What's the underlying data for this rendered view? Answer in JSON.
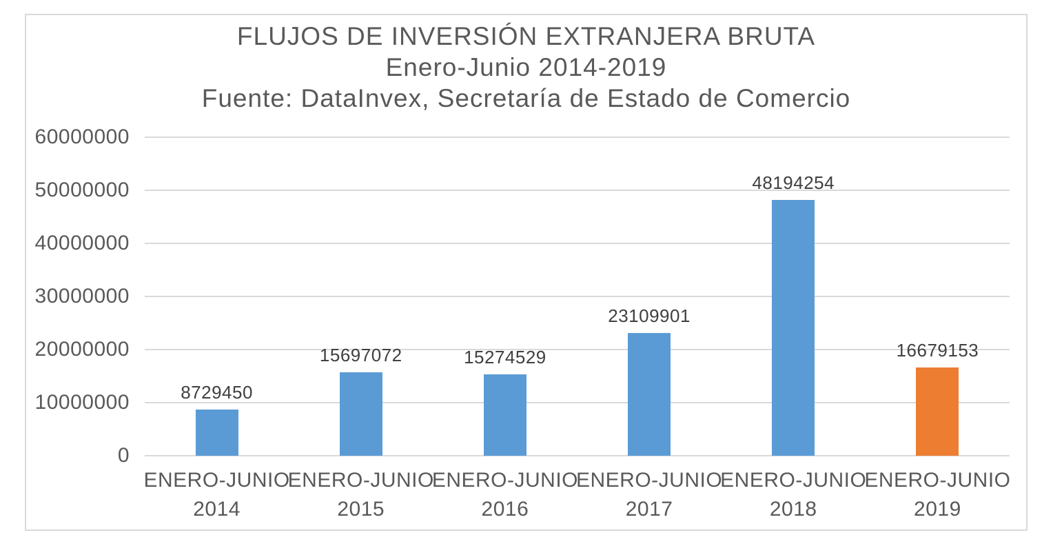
{
  "page": {
    "background": "#FFFFFF",
    "frame_border_color": "#D9D9D9"
  },
  "chart_data": {
    "type": "bar",
    "title": "FLUJOS DE INVERSIÓN EXTRANJERA BRUTA",
    "subtitle": "Enero-Junio 2014-2019",
    "source_line": "Fuente: DataInvex, Secretaría de Estado de Comercio",
    "categories": [
      "ENERO-JUNIO 2014",
      "ENERO-JUNIO 2015",
      "ENERO-JUNIO 2016",
      "ENERO-JUNIO 2017",
      "ENERO-JUNIO 2018",
      "ENERO-JUNIO 2019"
    ],
    "values": [
      8729450,
      15697072,
      15274529,
      23109901,
      48194254,
      16679153
    ],
    "data_labels": [
      "8729450",
      "15697072",
      "15274529",
      "23109901",
      "48194254",
      "16679153"
    ],
    "bar_colors": [
      "#5B9BD5",
      "#5B9BD5",
      "#5B9BD5",
      "#5B9BD5",
      "#5B9BD5",
      "#ED7D31"
    ],
    "xlabel": "",
    "ylabel": "",
    "ylim": [
      0,
      60000000
    ],
    "yticks": [
      0,
      10000000,
      20000000,
      30000000,
      40000000,
      50000000,
      60000000
    ],
    "ytick_labels": [
      "0",
      "10000000",
      "20000000",
      "30000000",
      "40000000",
      "50000000",
      "60000000"
    ],
    "grid": true,
    "legend": "none",
    "gridline_color": "#D9D9D9",
    "axis_label_color": "#595959",
    "data_label_color": "#404040",
    "title_color": "#595959"
  }
}
